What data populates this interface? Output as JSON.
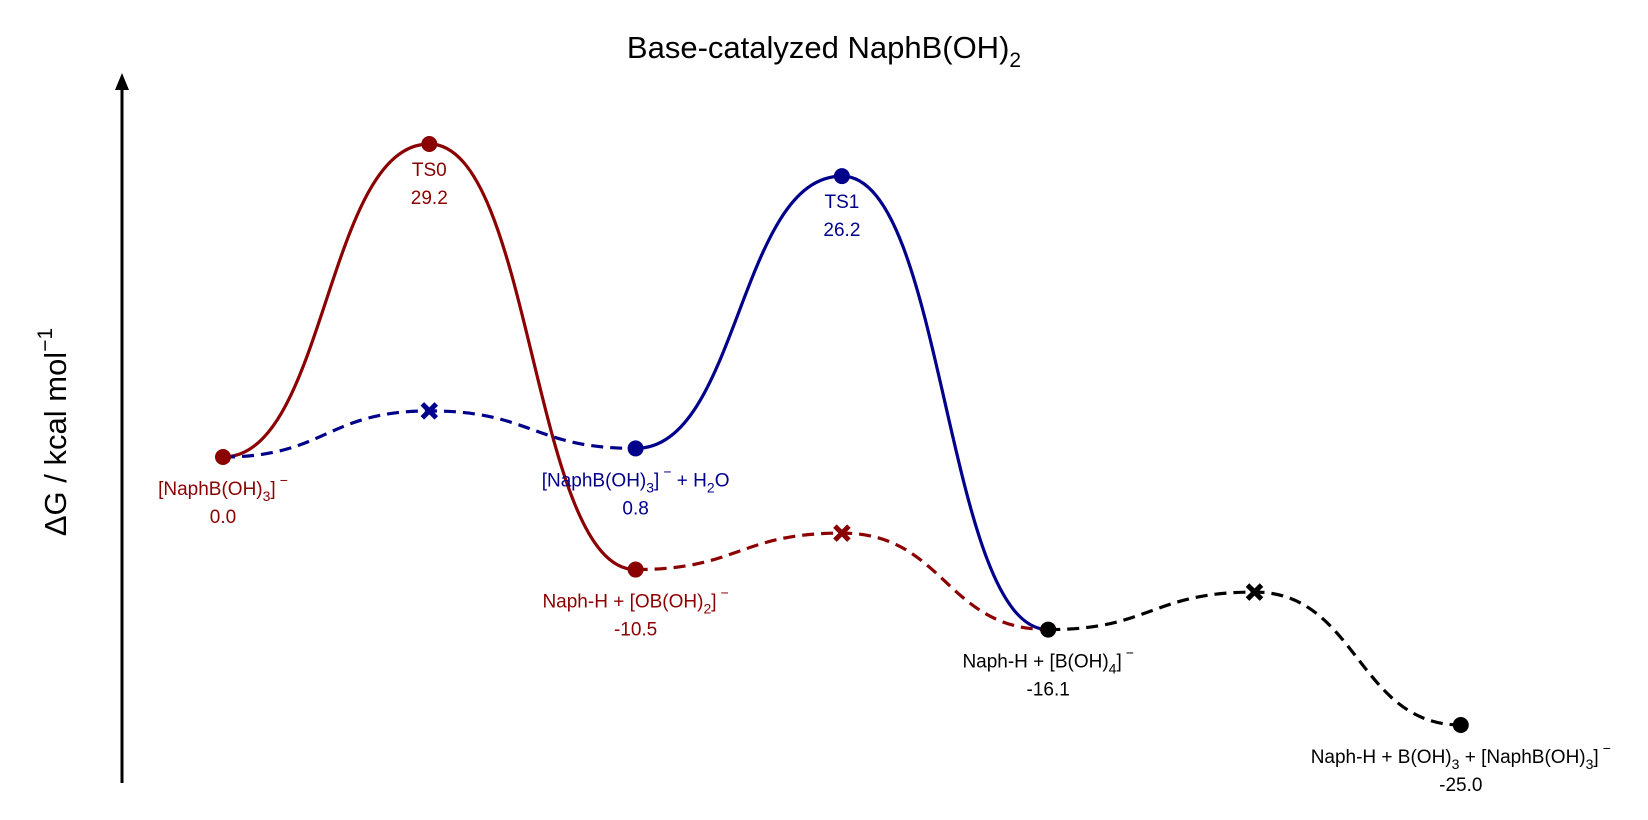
{
  "chart_data": {
    "type": "line",
    "title_main": "Base-catalyzed NaphB(OH)",
    "title_sub": "2",
    "ylabel_main": "ΔG / kcal mol",
    "ylabel_sup": "−1",
    "colors": {
      "red": "#8b0000",
      "blue": "#00008b",
      "black": "#000000"
    },
    "states": [
      {
        "id": "s0",
        "x": 1,
        "energy": 0.0,
        "color": "red",
        "label_parts": [
          [
            "[NaphB(OH)",
            "n"
          ],
          [
            "3",
            "sub"
          ],
          [
            "]",
            "n"
          ],
          [
            "−",
            "sup"
          ]
        ],
        "value_text": "0.0"
      },
      {
        "id": "ts0",
        "x": 2,
        "energy": 29.2,
        "color": "red",
        "label_parts": [
          [
            "TS0",
            "n"
          ]
        ],
        "value_text": "29.2"
      },
      {
        "id": "s1",
        "x": 3,
        "energy": 0.8,
        "color": "blue",
        "label_parts": [
          [
            "[NaphB(OH)",
            "n"
          ],
          [
            "3",
            "sub"
          ],
          [
            "]",
            "n"
          ],
          [
            "−",
            "sup"
          ],
          [
            "  + H",
            "n"
          ],
          [
            "2",
            "sub"
          ],
          [
            "O",
            "n"
          ]
        ],
        "value_text": "0.8"
      },
      {
        "id": "s2",
        "x": 3,
        "energy": -10.5,
        "color": "red",
        "label_parts": [
          [
            "Naph-H + [OB(OH)",
            "n"
          ],
          [
            "2",
            "sub"
          ],
          [
            "]",
            "n"
          ],
          [
            "−",
            "sup"
          ]
        ],
        "value_text": "-10.5"
      },
      {
        "id": "ts1",
        "x": 4,
        "energy": 26.2,
        "color": "blue",
        "label_parts": [
          [
            "TS1",
            "n"
          ]
        ],
        "value_text": "26.2"
      },
      {
        "id": "s3",
        "x": 5,
        "energy": -16.1,
        "color": "black",
        "label_parts": [
          [
            "Naph-H + [B(OH)",
            "n"
          ],
          [
            "4",
            "sub"
          ],
          [
            "]",
            "n"
          ],
          [
            "−",
            "sup"
          ]
        ],
        "value_text": "-16.1"
      },
      {
        "id": "s4",
        "x": 7,
        "energy": -25.0,
        "color": "black",
        "label_parts": [
          [
            "Naph-H + B(OH)",
            "n"
          ],
          [
            "3",
            "sub"
          ],
          [
            " + [NaphB(OH)",
            "n"
          ],
          [
            "3",
            "sub"
          ],
          [
            "]",
            "n"
          ],
          [
            "−",
            "sup"
          ]
        ],
        "value_text": "-25.0"
      }
    ],
    "paths": [
      {
        "from": "s0",
        "to": "s2",
        "peak": "ts0",
        "style": "solid",
        "color": "red"
      },
      {
        "from": "s0",
        "to": "s1",
        "peak_x": 2,
        "peak_energy": 4.3,
        "style": "dashed",
        "color": "blue"
      },
      {
        "from": "s1",
        "to": "s3",
        "peak": "ts1",
        "style": "solid",
        "color": "blue"
      },
      {
        "from": "s2",
        "to": "s3",
        "peak_x": 4,
        "peak_energy": -7.1,
        "style": "dashed",
        "color": "red"
      },
      {
        "from": "s3",
        "to": "s4",
        "peak_x": 6,
        "peak_energy": -12.6,
        "style": "dashed",
        "color": "black"
      }
    ],
    "xlim": [
      0.5,
      7.5
    ],
    "ylim": [
      -30.5,
      35.7
    ]
  }
}
